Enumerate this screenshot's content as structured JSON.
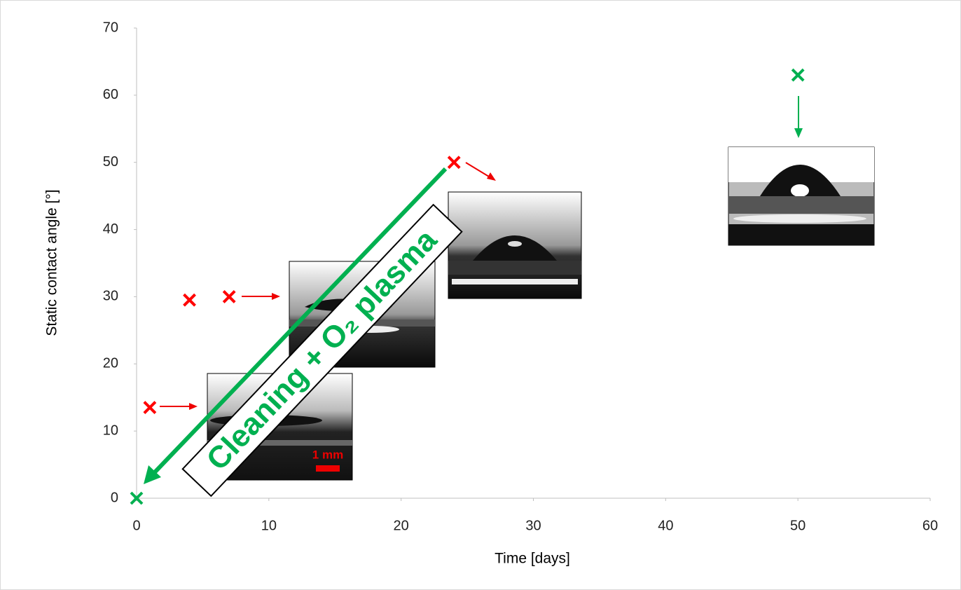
{
  "chart_data": {
    "type": "scatter",
    "xlabel": "Time [days]",
    "ylabel": "Static contact angle [°]",
    "xlim": [
      0,
      60
    ],
    "ylim": [
      0,
      70
    ],
    "xticks": [
      0,
      10,
      20,
      30,
      40,
      50,
      60
    ],
    "yticks": [
      0,
      10,
      20,
      30,
      40,
      50,
      60,
      70
    ],
    "series": [
      {
        "color": "#ff0000",
        "x": [
          1,
          4,
          7,
          24
        ],
        "values": [
          13.5,
          29.5,
          30,
          50
        ]
      },
      {
        "color": "#00b050",
        "x": [
          0,
          50
        ],
        "values": [
          0,
          63
        ]
      }
    ],
    "annotation": "Cleaning + O₂ plasma",
    "scale_bar_label": "1 mm"
  }
}
